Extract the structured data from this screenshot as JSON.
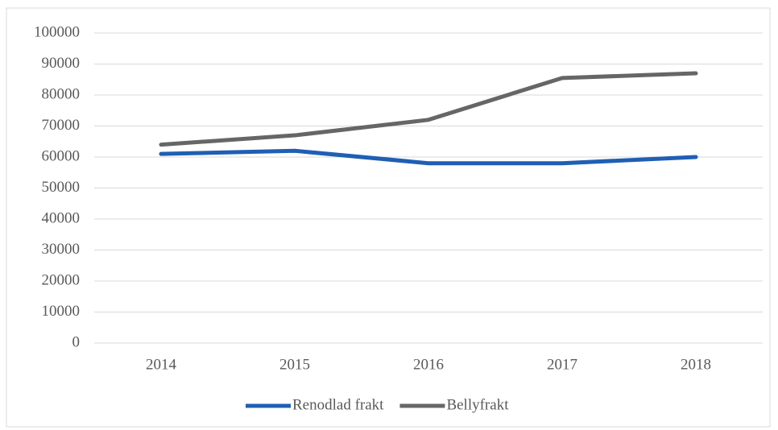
{
  "chart_data": {
    "type": "line",
    "categories": [
      "2014",
      "2015",
      "2016",
      "2017",
      "2018"
    ],
    "series": [
      {
        "name": "Renodlad frakt",
        "color": "#1f5fb4",
        "values": [
          61000,
          62000,
          58000,
          58000,
          60000
        ]
      },
      {
        "name": "Bellyfrakt",
        "color": "#666666",
        "values": [
          64000,
          67000,
          72000,
          85500,
          87000
        ]
      }
    ],
    "ylim": [
      0,
      100000
    ],
    "yticks": [
      0,
      10000,
      20000,
      30000,
      40000,
      50000,
      60000,
      70000,
      80000,
      90000,
      100000
    ],
    "grid": true,
    "legend": "bottom"
  }
}
